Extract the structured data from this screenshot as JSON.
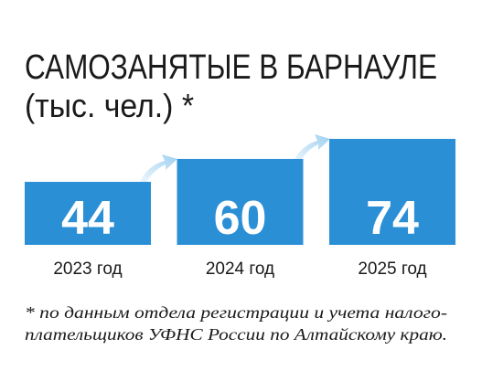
{
  "chart_data": {
    "type": "bar",
    "title": "САМОЗАНЯТЫЕ В БАРНАУЛЕ",
    "subtitle": "(тыс. чел.) *",
    "categories": [
      "2023 год",
      "2024 год",
      "2025 год"
    ],
    "values": [
      44,
      60,
      74
    ],
    "color": "#2b8fd6",
    "notes": [
      "* по данным отдела регистрации и учета налого-",
      "плательщиков УФНС России по Алтайскому краю."
    ]
  }
}
